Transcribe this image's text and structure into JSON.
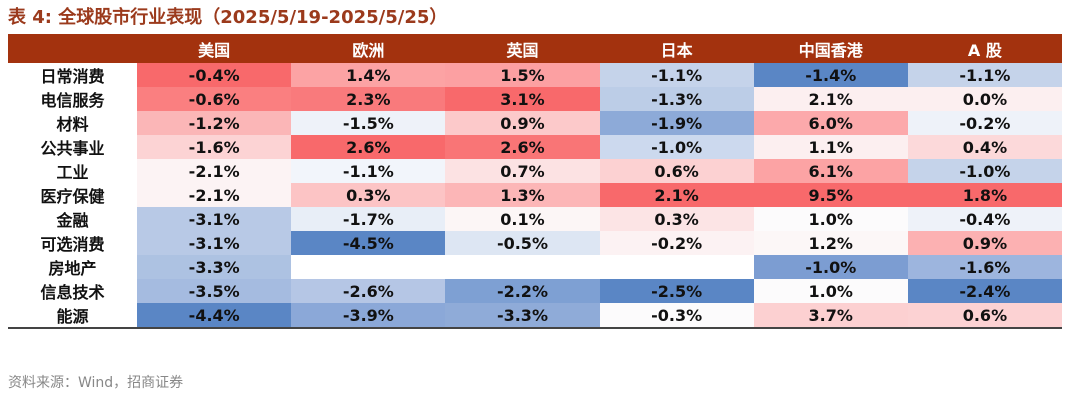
{
  "title": "表 4:  全球股市行业表现（2025/5/19-2025/5/25）",
  "columns": [
    "",
    "美国",
    "欧洲",
    "英国",
    "日本",
    "中国香港",
    "A 股"
  ],
  "rows": [
    {
      "label": "日常消费",
      "values": [
        "-0.4%",
        "1.4%",
        "1.5%",
        "-1.1%",
        "-1.4%",
        "-1.1%"
      ]
    },
    {
      "label": "电信服务",
      "values": [
        "-0.6%",
        "2.3%",
        "3.1%",
        "-1.3%",
        "2.1%",
        "0.0%"
      ]
    },
    {
      "label": "材料",
      "values": [
        "-1.2%",
        "-1.5%",
        "0.9%",
        "-1.9%",
        "6.0%",
        "-0.2%"
      ]
    },
    {
      "label": "公共事业",
      "values": [
        "-1.6%",
        "2.6%",
        "2.6%",
        "-1.0%",
        "1.1%",
        "0.4%"
      ]
    },
    {
      "label": "工业",
      "values": [
        "-2.1%",
        "-1.1%",
        "0.7%",
        "0.6%",
        "6.1%",
        "-1.0%"
      ]
    },
    {
      "label": "医疗保健",
      "values": [
        "-2.1%",
        "0.3%",
        "1.3%",
        "2.1%",
        "9.5%",
        "1.8%"
      ]
    },
    {
      "label": "金融",
      "values": [
        "-3.1%",
        "-1.7%",
        "0.1%",
        "0.3%",
        "1.0%",
        "-0.4%"
      ]
    },
    {
      "label": "可选消费",
      "values": [
        "-3.1%",
        "-4.5%",
        "-0.5%",
        "-0.2%",
        "1.2%",
        "0.9%"
      ]
    },
    {
      "label": "房地产",
      "values": [
        "-3.3%",
        "",
        "",
        "",
        "-1.0%",
        "-1.6%"
      ]
    },
    {
      "label": "信息技术",
      "values": [
        "-3.5%",
        "-2.6%",
        "-2.2%",
        "-2.5%",
        "1.0%",
        "-2.4%"
      ]
    },
    {
      "label": "能源",
      "values": [
        "-4.4%",
        "-3.9%",
        "-3.3%",
        "-0.3%",
        "3.7%",
        "0.6%"
      ]
    }
  ],
  "cell_colors": [
    [
      "#F8696B",
      "#FCA3A4",
      "#FCA0A2",
      "#C5D3EA",
      "#5A86C5",
      "#C5D3EA"
    ],
    [
      "#FA7F80",
      "#F97A7C",
      "#F8696B",
      "#BCCDE7",
      "#FCEFF0",
      "#FCEFF0"
    ],
    [
      "#FBB6B7",
      "#EEF2F9",
      "#FCC9CA",
      "#8DAAD8",
      "#FCA9AB",
      "#EEF2F9"
    ],
    [
      "#FCD3D4",
      "#F8696B",
      "#F97576",
      "#CCD9EE",
      "#FCEFF0",
      "#FCD9DA"
    ],
    [
      "#FCF3F4",
      "#F2F5FB",
      "#FCE2E3",
      "#FCD1D2",
      "#FCA3A4",
      "#C5D3EA"
    ],
    [
      "#FCF3F4",
      "#FCC4C5",
      "#FCB6B7",
      "#F8696B",
      "#F8696B",
      "#F8696B"
    ],
    [
      "#B8C9E6",
      "#E8EEF7",
      "#FCF6F6",
      "#FCE4E5",
      "#FCFBFC",
      "#EEF2F9"
    ],
    [
      "#B8C9E6",
      "#5A86C5",
      "#DDE6F3",
      "#FCF2F3",
      "#FCF7F7",
      "#FCB1B2"
    ],
    [
      "#ADC2E2",
      "#FFFFFF",
      "#FFFFFF",
      "#FFFFFF",
      "#7C9DD2",
      "#9DB5DE"
    ],
    [
      "#A5BBE0",
      "#B5C6E5",
      "#7EA0D3",
      "#5A86C5",
      "#FCFBFC",
      "#5A86C5"
    ],
    [
      "#5A86C5",
      "#8BA8D8",
      "#8FABD8",
      "#FCFBFC",
      "#FCD0D1",
      "#FCD2D3"
    ]
  ],
  "header_bg": "#A3320E",
  "title_color": "#9B3A1C",
  "source": "资料来源：Wind，招商证券"
}
